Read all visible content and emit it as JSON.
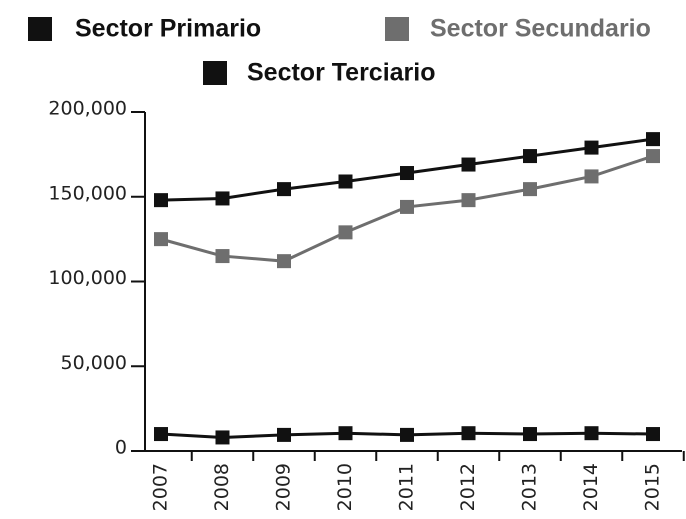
{
  "chart_data": {
    "type": "line",
    "categories": [
      "2007",
      "2008",
      "2009",
      "2010",
      "2011",
      "2012",
      "2013",
      "2014",
      "2015"
    ],
    "series": [
      {
        "name": "Sector Primario",
        "color": "#111111",
        "values": [
          10000,
          8000,
          9500,
          10500,
          9500,
          10500,
          10000,
          10500,
          10000
        ]
      },
      {
        "name": "Sector Secundario",
        "color": "#6e6e6e",
        "values": [
          125000,
          115000,
          112000,
          129000,
          144000,
          148000,
          154500,
          162000,
          174000
        ]
      },
      {
        "name": "Sector Terciario",
        "color": "#111111",
        "values": [
          148000,
          149000,
          154500,
          159000,
          164000,
          169000,
          174000,
          179000,
          184000
        ]
      }
    ],
    "ylim": [
      0,
      200000
    ],
    "yticks": [
      0,
      {
        "value": 50000,
        "label": "50,000"
      },
      {
        "value": 100000,
        "label": "100,000"
      },
      {
        "value": 150000,
        "label": "150,000"
      },
      {
        "value": 200000,
        "label": "200,000"
      }
    ],
    "legend": "top"
  }
}
